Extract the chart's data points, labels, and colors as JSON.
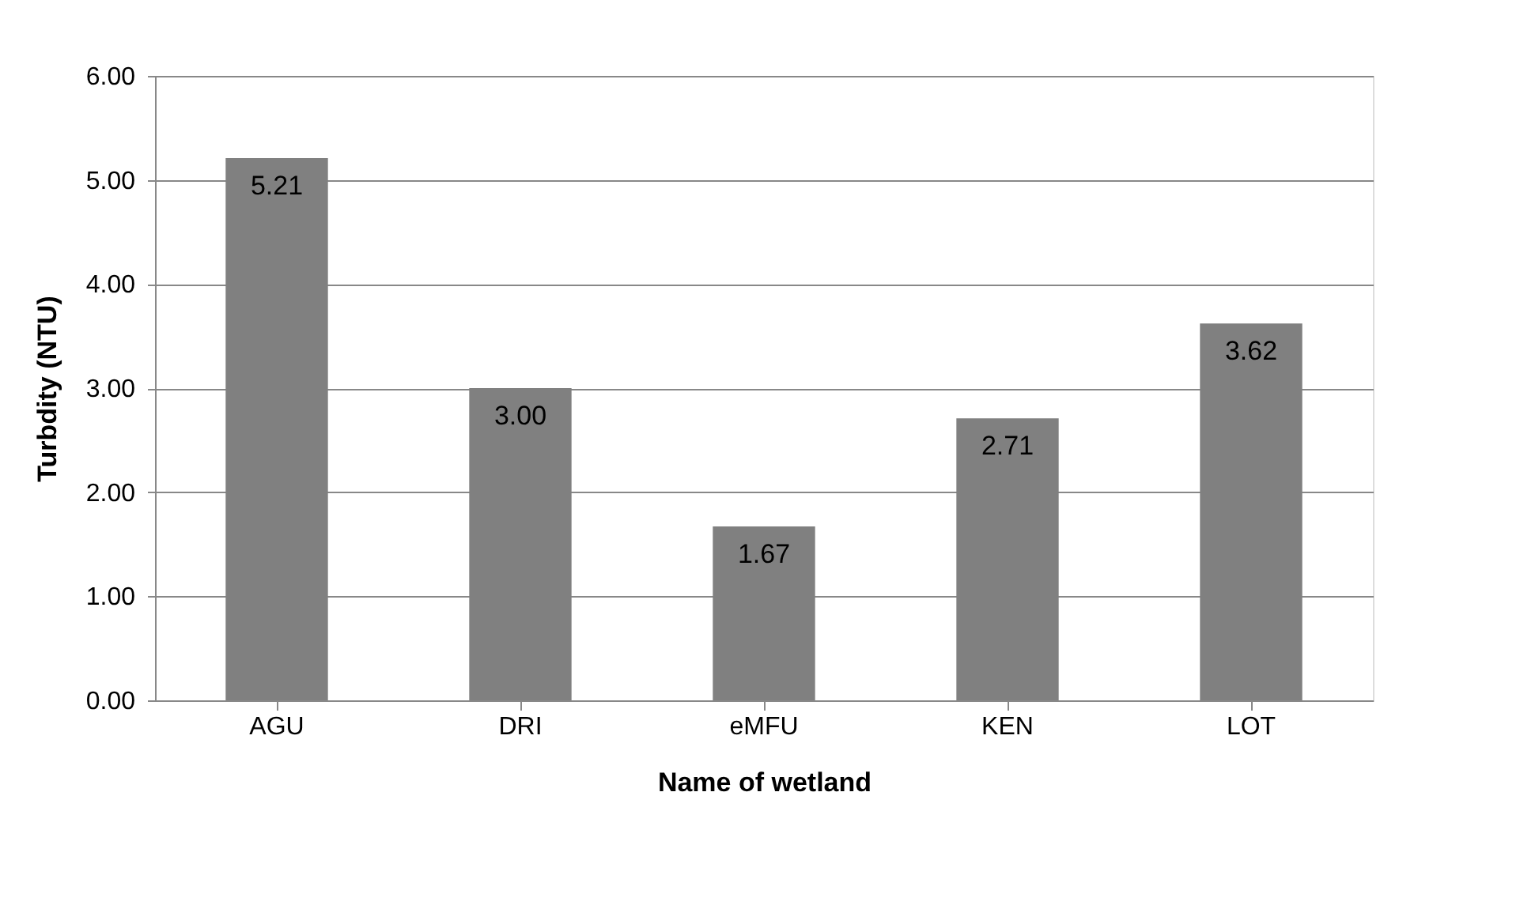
{
  "chart_data": {
    "type": "bar",
    "xlabel": "Name of wetland",
    "ylabel": "Turbdity (NTU)",
    "categories": [
      "AGU",
      "DRI",
      "eMFU",
      "KEN",
      "LOT"
    ],
    "values": [
      5.21,
      3.0,
      1.67,
      2.71,
      3.62
    ],
    "value_labels": [
      "5.21",
      "3.00",
      "1.67",
      "2.71",
      "3.62"
    ],
    "color": "#808080",
    "ylim": [
      0,
      6
    ],
    "yticks": [
      {
        "value": 0,
        "label": "0.00"
      },
      {
        "value": 1,
        "label": "1.00"
      },
      {
        "value": 2,
        "label": "2.00"
      },
      {
        "value": 3,
        "label": "3.00"
      },
      {
        "value": 4,
        "label": "4.00"
      },
      {
        "value": 5,
        "label": "5.00"
      },
      {
        "value": 6,
        "label": "6.00"
      }
    ],
    "grid": "y"
  }
}
